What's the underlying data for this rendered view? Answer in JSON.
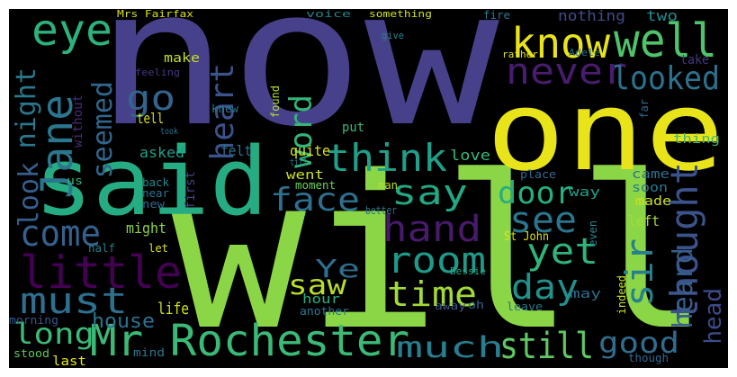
{
  "wordcloud": {
    "background": "#000000",
    "words": [
      {
        "text": "now",
        "color": "#46418a"
      },
      {
        "text": "will",
        "color": "#8bd646"
      },
      {
        "text": "one",
        "color": "#e8e419"
      },
      {
        "text": "said",
        "color": "#25ac82"
      },
      {
        "text": "Mr Rochester",
        "color": "#3aba76"
      },
      {
        "text": "well",
        "color": "#4ec36b"
      },
      {
        "text": "know",
        "color": "#e8e419"
      },
      {
        "text": "eye",
        "color": "#2db27d"
      },
      {
        "text": "Jane",
        "color": "#2a768e"
      },
      {
        "text": "never",
        "color": "#481c6e"
      },
      {
        "text": "looked",
        "color": "#2c728e"
      },
      {
        "text": "go",
        "color": "#32648e"
      },
      {
        "text": "heart",
        "color": "#3a538b"
      },
      {
        "text": "word",
        "color": "#32b67a"
      },
      {
        "text": "seemed",
        "color": "#31678e"
      },
      {
        "text": "night",
        "color": "#2a788e"
      },
      {
        "text": "think",
        "color": "#1fa088"
      },
      {
        "text": "say",
        "color": "#22a884"
      },
      {
        "text": "face",
        "color": "#2d708e"
      },
      {
        "text": "look",
        "color": "#355f8d"
      },
      {
        "text": "come",
        "color": "#34618d"
      },
      {
        "text": "door",
        "color": "#26ad81"
      },
      {
        "text": "see",
        "color": "#2a768e"
      },
      {
        "text": "hand",
        "color": "#481a6c"
      },
      {
        "text": "yet",
        "color": "#2fb47c"
      },
      {
        "text": "thought",
        "color": "#3b528b"
      },
      {
        "text": "little",
        "color": "#440154"
      },
      {
        "text": "room",
        "color": "#1f9a8a"
      },
      {
        "text": "time",
        "color": "#a2da37"
      },
      {
        "text": "day",
        "color": "#21918c"
      },
      {
        "text": "sir",
        "color": "#27808e"
      },
      {
        "text": "must",
        "color": "#2d708e"
      },
      {
        "text": "Ye",
        "color": "#2e6e8e"
      },
      {
        "text": "saw",
        "color": "#b8de29"
      },
      {
        "text": "heard",
        "color": "#355f8d"
      },
      {
        "text": "long",
        "color": "#3aba76"
      },
      {
        "text": "much",
        "color": "#287d8e"
      },
      {
        "text": "still",
        "color": "#5ec962"
      },
      {
        "text": "good",
        "color": "#2f6c8e"
      },
      {
        "text": "head",
        "color": "#3e4a89"
      },
      {
        "text": "house",
        "color": "#2c728e"
      },
      {
        "text": "life",
        "color": "#d0e11c"
      },
      {
        "text": "Mrs Fairfax",
        "color": "#d8e219"
      },
      {
        "text": "voice",
        "color": "#26818e"
      },
      {
        "text": "something",
        "color": "#d0e11c"
      },
      {
        "text": "fire",
        "color": "#2a788e"
      },
      {
        "text": "nothing",
        "color": "#3e4c8a"
      },
      {
        "text": "two",
        "color": "#238a8d"
      },
      {
        "text": "make",
        "color": "#c2df23"
      },
      {
        "text": "feeling",
        "color": "#453581"
      },
      {
        "text": "rather",
        "color": "#dde318"
      },
      {
        "text": "Adele",
        "color": "#2e6f8e"
      },
      {
        "text": "give",
        "color": "#25858e"
      },
      {
        "text": "take",
        "color": "#443983"
      },
      {
        "text": "tell",
        "color": "#d8e219"
      },
      {
        "text": "without",
        "color": "#482979"
      },
      {
        "text": "took",
        "color": "#2c728e"
      },
      {
        "text": "knew",
        "color": "#2a788e"
      },
      {
        "text": "found",
        "color": "#b5de2b"
      },
      {
        "text": "far",
        "color": "#30698e"
      },
      {
        "text": "put",
        "color": "#3aba76"
      },
      {
        "text": "quite",
        "color": "#dde318"
      },
      {
        "text": "till",
        "color": "#26818e"
      },
      {
        "text": "thing",
        "color": "#3dbc74"
      },
      {
        "text": "felt",
        "color": "#2d708e"
      },
      {
        "text": "asked",
        "color": "#1fa088"
      },
      {
        "text": "went",
        "color": "#cae11f"
      },
      {
        "text": "first",
        "color": "#414487"
      },
      {
        "text": "love",
        "color": "#35b779"
      },
      {
        "text": "us",
        "color": "#31b57b"
      },
      {
        "text": "back",
        "color": "#23898e"
      },
      {
        "text": "near",
        "color": "#2d718e"
      },
      {
        "text": "new",
        "color": "#2f6c8e"
      },
      {
        "text": "moment",
        "color": "#6ccd5a"
      },
      {
        "text": "man",
        "color": "#bddf26"
      },
      {
        "text": "better",
        "color": "#2c738e"
      },
      {
        "text": "place",
        "color": "#31688e"
      },
      {
        "text": "came",
        "color": "#2d708e"
      },
      {
        "text": "soon",
        "color": "#2a788e"
      },
      {
        "text": "way",
        "color": "#1fa188"
      },
      {
        "text": "made",
        "color": "#cde11d"
      },
      {
        "text": "left",
        "color": "#a5db36"
      },
      {
        "text": "might",
        "color": "#8bd646"
      },
      {
        "text": "half",
        "color": "#287c8e"
      },
      {
        "text": "let",
        "color": "#d8e219"
      },
      {
        "text": "St John",
        "color": "#dde318"
      },
      {
        "text": "even",
        "color": "#23898e"
      },
      {
        "text": "Bessie",
        "color": "#22a884"
      },
      {
        "text": "oh",
        "color": "#31688e"
      },
      {
        "text": "hour",
        "color": "#28ae80"
      },
      {
        "text": "another",
        "color": "#2a788e"
      },
      {
        "text": "away",
        "color": "#3b528b"
      },
      {
        "text": "leave",
        "color": "#2a768e"
      },
      {
        "text": "indeed",
        "color": "#c8e020"
      },
      {
        "text": "may",
        "color": "#2e6e8e"
      },
      {
        "text": "though",
        "color": "#31688e"
      },
      {
        "text": "morning",
        "color": "#39568c"
      },
      {
        "text": "mind",
        "color": "#2a768e"
      },
      {
        "text": "stood",
        "color": "#5ec962"
      },
      {
        "text": "last",
        "color": "#e5e419"
      }
    ]
  }
}
